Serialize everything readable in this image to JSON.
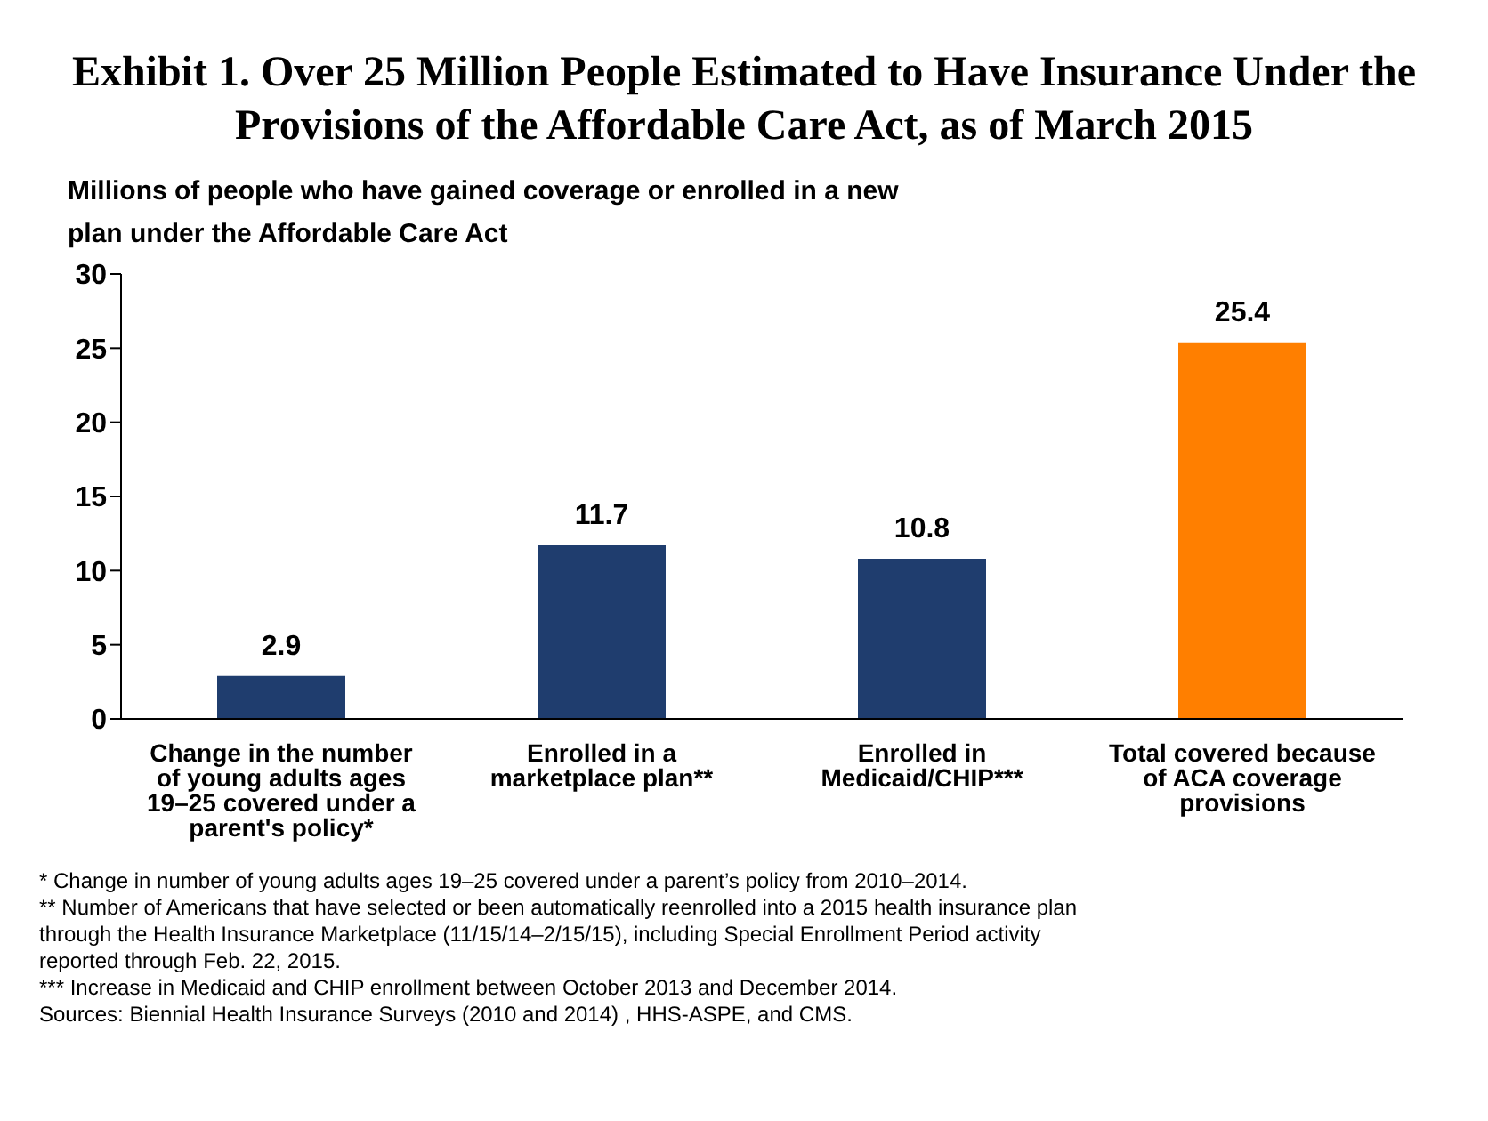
{
  "chart_data": {
    "type": "bar",
    "title": "Exhibit 1. Over 25 Million People Estimated to Have Insurance Under the Provisions of the Affordable Care Act, as of March 2015",
    "subtitle": "Millions of people who have gained coverage or enrolled in a new plan under the Affordable Care Act",
    "categories": [
      "Change in the number of young adults ages 19–25 covered under a parent's policy*",
      "Enrolled in a marketplace plan**",
      "Enrolled in Medicaid/CHIP***",
      "Total covered because of ACA coverage provisions"
    ],
    "values": [
      2.9,
      11.7,
      10.8,
      25.4
    ],
    "colors": [
      "#1f3d6e",
      "#1f3d6e",
      "#1f3d6e",
      "#ff7f00"
    ],
    "ylim": [
      0,
      30
    ],
    "yticks": [
      0,
      5,
      10,
      15,
      20,
      25,
      30
    ],
    "grid": false,
    "legend": false,
    "data_labels": true,
    "annotations": [
      "* Change in number of young adults ages 19–25 covered under a parent’s policy from 2010–2014.",
      "** Number of Americans that have selected or been automatically reenrolled into a 2015 health insurance plan through the Health Insurance Marketplace (11/15/14–2/15/15), including Special Enrollment Period activity reported through Feb. 22, 2015.",
      "*** Increase in Medicaid and CHIP enrollment between October 2013 and December 2014.",
      "Sources: Biennial Health Insurance Surveys (2010 and 2014) , HHS-ASPE, and CMS."
    ]
  }
}
